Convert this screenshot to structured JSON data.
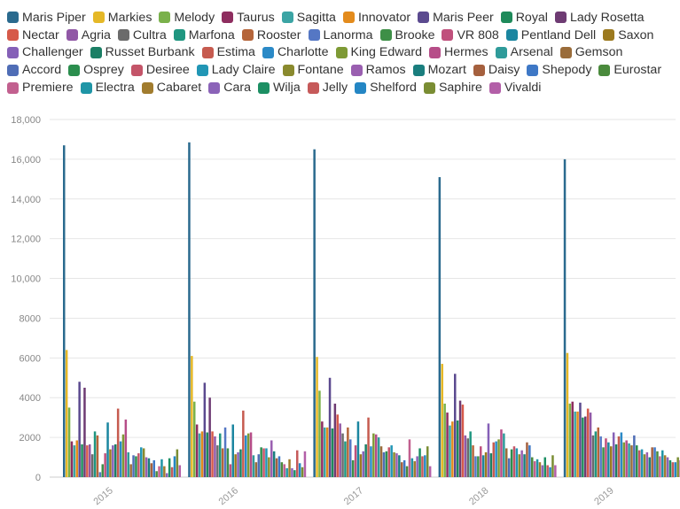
{
  "chart_data": {
    "type": "bar",
    "title": "",
    "xlabel": "",
    "ylabel": "",
    "ylim": [
      0,
      18000
    ],
    "yticks": [
      0,
      2000,
      4000,
      6000,
      8000,
      10000,
      12000,
      14000,
      16000,
      18000
    ],
    "ytick_labels": [
      "0",
      "2000",
      "4000",
      "6000",
      "8000",
      "10,000",
      "12,000",
      "14,000",
      "16,000",
      "18,000"
    ],
    "grid": true,
    "legend": "top",
    "categories": [
      "2015",
      "2016",
      "2017",
      "2018",
      "2019"
    ],
    "series": [
      {
        "name": "Maris Piper",
        "color": "#2a6a8e",
        "values": [
          16700,
          16850,
          16500,
          15100,
          16000
        ]
      },
      {
        "name": "Markies",
        "color": "#e5b827",
        "values": [
          6400,
          6100,
          6050,
          5700,
          6250
        ]
      },
      {
        "name": "Melody",
        "color": "#7ab14b",
        "values": [
          3500,
          3800,
          4350,
          3700,
          3700
        ]
      },
      {
        "name": "Taurus",
        "color": "#8e2d5f",
        "values": [
          1800,
          2650,
          2800,
          3250,
          3800
        ]
      },
      {
        "name": "Sagitta",
        "color": "#3ba4a4",
        "values": [
          1600,
          2200,
          2500,
          2600,
          3300
        ]
      },
      {
        "name": "Innovator",
        "color": "#e38b1c",
        "values": [
          1850,
          2300,
          2500,
          2800,
          3300
        ]
      },
      {
        "name": "Maris Peer",
        "color": "#5b4a8f",
        "values": [
          4800,
          4750,
          5000,
          5200,
          3750
        ]
      },
      {
        "name": "Royal",
        "color": "#1e8a5a",
        "values": [
          1650,
          2250,
          2450,
          2850,
          3000
        ]
      },
      {
        "name": "Lady Rosetta",
        "color": "#6e3b73",
        "values": [
          4500,
          4000,
          3700,
          3850,
          3050
        ]
      },
      {
        "name": "Nectar",
        "color": "#d65a4a",
        "values": [
          1600,
          2300,
          3150,
          3650,
          3450
        ]
      },
      {
        "name": "Agria",
        "color": "#9158a6",
        "values": [
          1650,
          2050,
          2700,
          2100,
          3250
        ]
      },
      {
        "name": "Cultra",
        "color": "#6b6b6b",
        "values": [
          1150,
          1600,
          2200,
          1950,
          2100
        ]
      },
      {
        "name": "Marfona",
        "color": "#1f9680",
        "values": [
          2300,
          2200,
          1800,
          2300,
          2300
        ]
      },
      {
        "name": "Rooster",
        "color": "#b5653a",
        "values": [
          2100,
          1450,
          2500,
          1600,
          2500
        ]
      },
      {
        "name": "Lanorma",
        "color": "#5577c4",
        "values": [
          250,
          2500,
          1900,
          1050,
          2050
        ]
      },
      {
        "name": "Brooke",
        "color": "#3e8f47",
        "values": [
          650,
          1450,
          850,
          1050,
          1500
        ]
      },
      {
        "name": "VR 808",
        "color": "#c0507c",
        "values": [
          1200,
          650,
          1600,
          1550,
          1950
        ]
      },
      {
        "name": "Pentland Dell",
        "color": "#1b86a0",
        "values": [
          2750,
          2650,
          2800,
          1100,
          1750
        ]
      },
      {
        "name": "Saxon",
        "color": "#9c7a1f",
        "values": [
          1400,
          1150,
          1150,
          1250,
          1550
        ]
      },
      {
        "name": "Challenger",
        "color": "#8560b7",
        "values": [
          1600,
          1250,
          1300,
          2700,
          2250
        ]
      },
      {
        "name": "Russet Burbank",
        "color": "#1b7f65",
        "values": [
          1650,
          1400,
          1650,
          1200,
          1650
        ]
      },
      {
        "name": "Estima",
        "color": "#c65b4f",
        "values": [
          3450,
          3350,
          3000,
          1750,
          2050
        ]
      },
      {
        "name": "Charlotte",
        "color": "#2b8ac7",
        "values": [
          1800,
          2100,
          1550,
          1800,
          2250
        ]
      },
      {
        "name": "King Edward",
        "color": "#7e9a35",
        "values": [
          2150,
          2200,
          2200,
          1900,
          1750
        ]
      },
      {
        "name": "Hermes",
        "color": "#b64d88",
        "values": [
          2900,
          2250,
          2150,
          2400,
          1850
        ]
      },
      {
        "name": "Arsenal",
        "color": "#2f9b9a",
        "values": [
          1250,
          1100,
          2000,
          2200,
          1700
        ]
      },
      {
        "name": "Gemson",
        "color": "#9a6c3a",
        "values": [
          650,
          750,
          1550,
          1450,
          1600
        ]
      },
      {
        "name": "Accord",
        "color": "#4f6db6",
        "values": [
          1100,
          1150,
          1250,
          950,
          2100
        ]
      },
      {
        "name": "Osprey",
        "color": "#2b8e4e",
        "values": [
          1050,
          1500,
          1300,
          1400,
          1600
        ]
      },
      {
        "name": "Desiree",
        "color": "#c45569",
        "values": [
          1200,
          1450,
          1500,
          1550,
          1350
        ]
      },
      {
        "name": "Lady Claire",
        "color": "#2196b5",
        "values": [
          1500,
          1450,
          1600,
          1450,
          1400
        ]
      },
      {
        "name": "Fontane",
        "color": "#8a8a2e",
        "values": [
          1450,
          1000,
          1250,
          1150,
          1150
        ]
      },
      {
        "name": "Ramos",
        "color": "#9a5fb0",
        "values": [
          1000,
          1850,
          1200,
          1350,
          1250
        ]
      },
      {
        "name": "Mozart",
        "color": "#1a7e7e",
        "values": [
          950,
          1300,
          1100,
          1150,
          1000
        ]
      },
      {
        "name": "Daisy",
        "color": "#a5603e",
        "values": [
          700,
          950,
          750,
          1750,
          1500
        ]
      },
      {
        "name": "Shepody",
        "color": "#3e78c6",
        "values": [
          850,
          1050,
          850,
          1600,
          1500
        ]
      },
      {
        "name": "Eurostar",
        "color": "#4a8a3c",
        "values": [
          300,
          750,
          550,
          1000,
          1300
        ]
      },
      {
        "name": "Premiere",
        "color": "#c2608f",
        "values": [
          550,
          650,
          1900,
          800,
          1050
        ]
      },
      {
        "name": "Electra",
        "color": "#1f95a6",
        "values": [
          900,
          450,
          950,
          900,
          1350
        ]
      },
      {
        "name": "Cabaret",
        "color": "#a17c2e",
        "values": [
          550,
          900,
          800,
          750,
          1100
        ]
      },
      {
        "name": "Cara",
        "color": "#8b63b8",
        "values": [
          200,
          450,
          1050,
          600,
          1000
        ]
      },
      {
        "name": "Wilja",
        "color": "#1c8f63",
        "values": [
          950,
          350,
          1450,
          1000,
          850
        ]
      },
      {
        "name": "Jelly",
        "color": "#c65a5a",
        "values": [
          500,
          1350,
          1050,
          600,
          750
        ]
      },
      {
        "name": "Shelford",
        "color": "#2486c4",
        "values": [
          1050,
          700,
          1100,
          500,
          750
        ]
      },
      {
        "name": "Saphire",
        "color": "#7a8d33",
        "values": [
          1400,
          500,
          1550,
          1100,
          1000
        ]
      },
      {
        "name": "Vivaldi",
        "color": "#b35fa8",
        "values": [
          600,
          1300,
          550,
          600,
          850
        ]
      }
    ]
  }
}
